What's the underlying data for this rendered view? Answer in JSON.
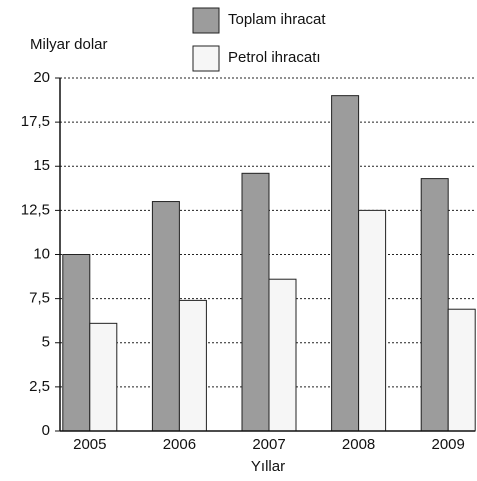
{
  "chart_data": {
    "type": "bar",
    "ylabel": "Milyar dolar",
    "xlabel": "Yıllar",
    "categories": [
      "2005",
      "2006",
      "2007",
      "2008",
      "2009"
    ],
    "series": [
      {
        "name": "Toplam ihracat",
        "color": "#9c9c9c",
        "values": [
          10,
          13,
          14.6,
          19,
          14.3
        ]
      },
      {
        "name": "Petrol ihracatı",
        "color": "#f6f6f6",
        "values": [
          6.1,
          7.4,
          8.6,
          12.5,
          6.9
        ]
      }
    ],
    "ylim": [
      0,
      20
    ],
    "yticks": [
      0,
      {
        "value": 2.5,
        "label": "2,5"
      },
      5,
      {
        "value": 7.5,
        "label": "7,5"
      },
      10,
      {
        "value": 12.5,
        "label": "12,5"
      },
      15,
      {
        "value": 17.5,
        "label": "17,5"
      },
      20
    ],
    "grid": true
  }
}
